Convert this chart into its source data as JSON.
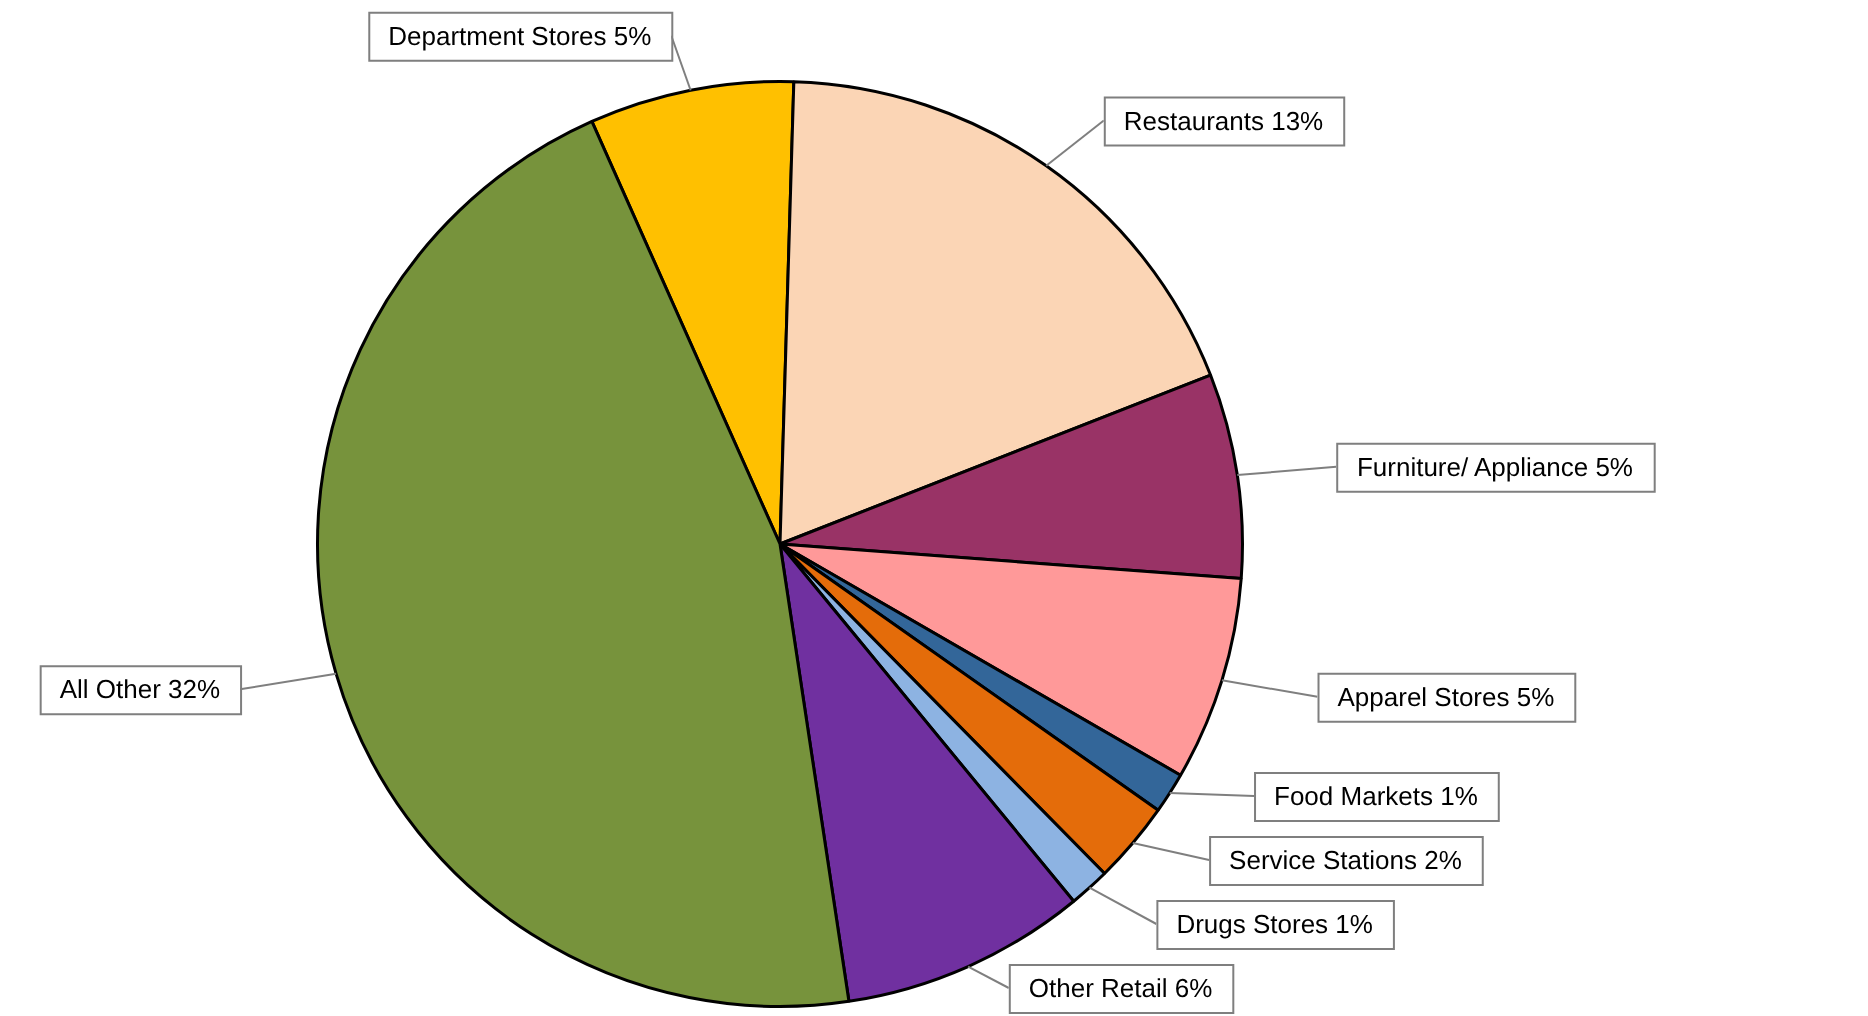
{
  "chart_data": {
    "type": "pie",
    "categories": [
      "Department Stores",
      "Restaurants",
      "Furniture/ Appliance",
      "Apparel Stores",
      "Food Markets",
      "Service Stations",
      "Drugs Stores",
      "Other Retail",
      "All Other"
    ],
    "values": [
      5,
      13,
      5,
      5,
      1,
      2,
      1,
      6,
      32
    ],
    "value_labels": [
      "5%",
      "13%",
      "5%",
      "5%",
      "1%",
      "2%",
      "1%",
      "6%",
      "32%"
    ],
    "colors": [
      "#ffc000",
      "#fbd5b5",
      "#993366",
      "#ff9999",
      "#336699",
      "#e46c0a",
      "#8db3e2",
      "#7030a0",
      "#77933c"
    ]
  }
}
